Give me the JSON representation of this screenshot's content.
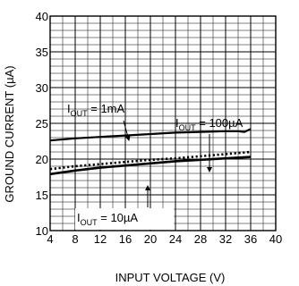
{
  "chart_data": {
    "type": "line",
    "xlabel": "INPUT  VOLTAGE (V)",
    "ylabel": "GROUND CURRENT (µA)",
    "xlim": [
      4,
      40
    ],
    "ylim": [
      10,
      40
    ],
    "x_ticks": [
      4,
      8,
      12,
      16,
      20,
      24,
      28,
      32,
      36,
      40
    ],
    "y_ticks": [
      10,
      15,
      20,
      25,
      30,
      35,
      40
    ],
    "x_tick_labels": [
      "4",
      "8",
      "12",
      "16",
      "20",
      "24",
      "28",
      "32",
      "36",
      "40"
    ],
    "y_tick_labels": [
      "10",
      "15",
      "20",
      "25",
      "30",
      "35",
      "40"
    ],
    "grid": true,
    "series": [
      {
        "name": "I_OUT = 1mA",
        "style": "solid",
        "x": [
          4,
          8,
          12,
          16,
          20,
          24,
          28,
          32,
          34,
          35,
          36
        ],
        "y": [
          22.6,
          22.9,
          23.1,
          23.3,
          23.5,
          23.7,
          23.8,
          23.9,
          23.9,
          23.8,
          24.2
        ]
      },
      {
        "name": "I_OUT = 100µA",
        "style": "dotted",
        "x": [
          4,
          8,
          12,
          16,
          20,
          24,
          28,
          32,
          36
        ],
        "y": [
          18.6,
          19.0,
          19.3,
          19.6,
          19.9,
          20.1,
          20.4,
          20.7,
          21.0
        ]
      },
      {
        "name": "I_OUT = 10µA",
        "style": "solid",
        "x": [
          4,
          8,
          12,
          16,
          20,
          24,
          28,
          32,
          36
        ],
        "y": [
          17.9,
          18.4,
          18.8,
          19.1,
          19.4,
          19.7,
          19.9,
          20.1,
          20.3
        ]
      }
    ],
    "annotations": [
      {
        "main": "I",
        "sub": "OUT",
        "rest": " = 1mA"
      },
      {
        "main": "I",
        "sub": "OUT",
        "rest": " = 100µA"
      },
      {
        "main": "I",
        "sub": "OUT",
        "rest": " = 10µA"
      }
    ]
  }
}
